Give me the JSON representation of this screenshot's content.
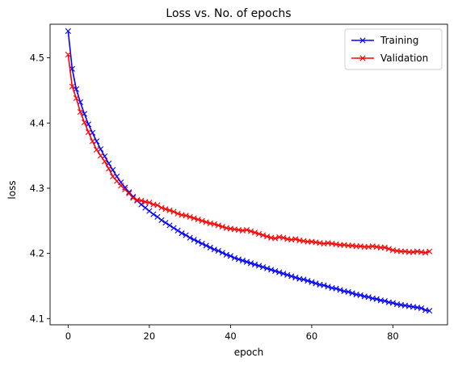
{
  "chart_data": {
    "type": "line",
    "title": "Loss vs. No. of epochs",
    "xlabel": "epoch",
    "ylabel": "loss",
    "xlim": [
      -4.45,
      93.45
    ],
    "ylim": [
      4.0905,
      4.5515
    ],
    "xticks": [
      0,
      20,
      40,
      60,
      80
    ],
    "yticks": [
      4.1,
      4.2,
      4.3,
      4.4,
      4.5
    ],
    "ytick_labels": [
      "4.1",
      "4.2",
      "4.3",
      "4.4",
      "4.5"
    ],
    "grid": false,
    "legend_position": "top-right",
    "marker": "x",
    "series": [
      {
        "name": "Training",
        "color": "#0000ff",
        "y": [
          4.541,
          4.483,
          4.452,
          4.432,
          4.414,
          4.398,
          4.385,
          4.372,
          4.36,
          4.349,
          4.338,
          4.328,
          4.318,
          4.309,
          4.301,
          4.294,
          4.287,
          4.281,
          4.275,
          4.27,
          4.265,
          4.26,
          4.256,
          4.251,
          4.247,
          4.243,
          4.239,
          4.235,
          4.231,
          4.228,
          4.224,
          4.221,
          4.218,
          4.215,
          4.212,
          4.209,
          4.206,
          4.204,
          4.201,
          4.198,
          4.196,
          4.193,
          4.191,
          4.189,
          4.187,
          4.185,
          4.183,
          4.181,
          4.179,
          4.177,
          4.175,
          4.173,
          4.171,
          4.169,
          4.167,
          4.165,
          4.163,
          4.161,
          4.16,
          4.158,
          4.156,
          4.154,
          4.152,
          4.151,
          4.149,
          4.147,
          4.146,
          4.144,
          4.142,
          4.141,
          4.139,
          4.137,
          4.136,
          4.134,
          4.133,
          4.131,
          4.13,
          4.128,
          4.127,
          4.125,
          4.124,
          4.122,
          4.121,
          4.12,
          4.119,
          4.118,
          4.117,
          4.116,
          4.113,
          4.112
        ]
      },
      {
        "name": "Validation",
        "color": "#ff0000",
        "y": [
          4.505,
          4.456,
          4.438,
          4.417,
          4.401,
          4.386,
          4.372,
          4.359,
          4.35,
          4.341,
          4.33,
          4.318,
          4.311,
          4.304,
          4.298,
          4.292,
          4.285,
          4.282,
          4.281,
          4.279,
          4.278,
          4.275,
          4.274,
          4.27,
          4.268,
          4.266,
          4.264,
          4.261,
          4.259,
          4.258,
          4.256,
          4.254,
          4.252,
          4.25,
          4.248,
          4.246,
          4.245,
          4.243,
          4.241,
          4.239,
          4.238,
          4.237,
          4.236,
          4.235,
          4.236,
          4.234,
          4.232,
          4.23,
          4.228,
          4.226,
          4.224,
          4.223,
          4.225,
          4.224,
          4.222,
          4.221,
          4.222,
          4.22,
          4.219,
          4.218,
          4.218,
          4.217,
          4.216,
          4.215,
          4.216,
          4.215,
          4.214,
          4.213,
          4.213,
          4.212,
          4.212,
          4.211,
          4.211,
          4.21,
          4.21,
          4.211,
          4.21,
          4.209,
          4.209,
          4.207,
          4.205,
          4.204,
          4.203,
          4.203,
          4.202,
          4.202,
          4.203,
          4.202,
          4.201,
          4.203
        ]
      }
    ]
  }
}
